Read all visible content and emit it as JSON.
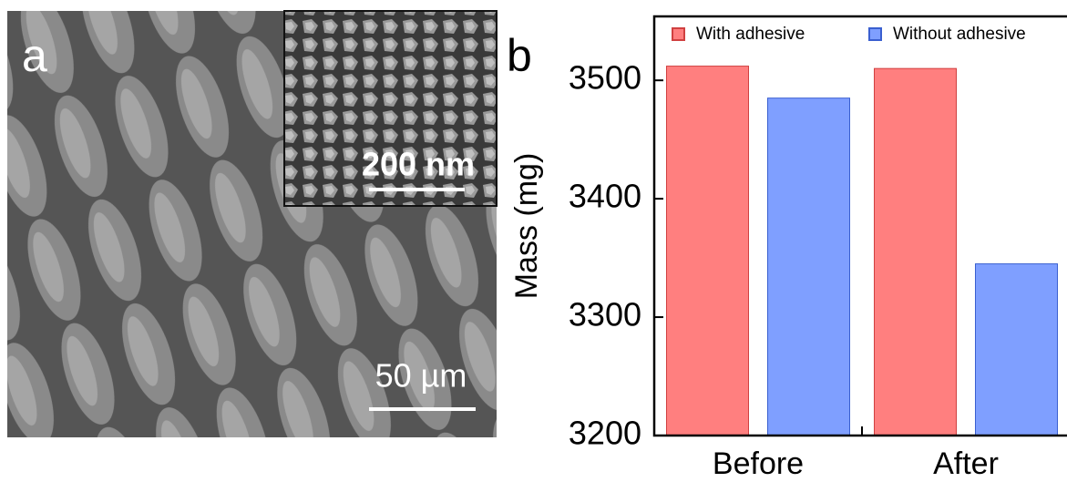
{
  "panel_a": {
    "label": "a",
    "scale_bar": "50 µm",
    "inset_scale_bar": "200 nm"
  },
  "chart_data": {
    "type": "bar",
    "panel_label": "b",
    "ylabel": "Mass (mg)",
    "categories": [
      "Before",
      "After"
    ],
    "series": [
      {
        "name": "With adhesive",
        "color": "#ff7f7f",
        "values": [
          3512,
          3510
        ]
      },
      {
        "name": "Without adhesive",
        "color": "#7f9fff",
        "values": [
          3485,
          3345
        ]
      }
    ],
    "ylim": [
      3200,
      3554
    ],
    "yticks": [
      3200,
      3300,
      3400,
      3500
    ],
    "legend": "top"
  }
}
